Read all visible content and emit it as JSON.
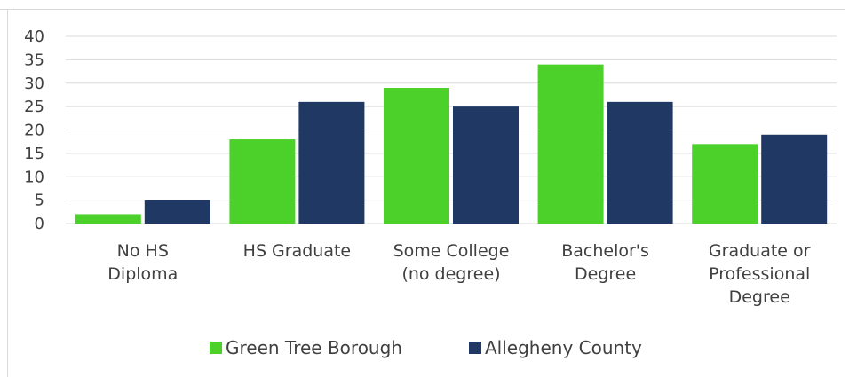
{
  "chart_data": {
    "type": "bar",
    "categories": [
      [
        "No HS",
        "Diploma"
      ],
      [
        "HS Graduate"
      ],
      [
        "Some College",
        "(no degree)"
      ],
      [
        "Bachelor's",
        "Degree"
      ],
      [
        "Graduate or",
        "Professional",
        "Degree"
      ]
    ],
    "series": [
      {
        "name": "Green Tree Borough",
        "color": "#4cd12a",
        "values": [
          2,
          18,
          29,
          34,
          17
        ]
      },
      {
        "name": "Allegheny County",
        "color": "#1f3864",
        "values": [
          5,
          26,
          25,
          26,
          19
        ]
      }
    ],
    "ylim": [
      0,
      40
    ],
    "yticks": [
      0,
      5,
      10,
      15,
      20,
      25,
      30,
      35,
      40
    ],
    "grid": true,
    "legend_position": "bottom"
  }
}
